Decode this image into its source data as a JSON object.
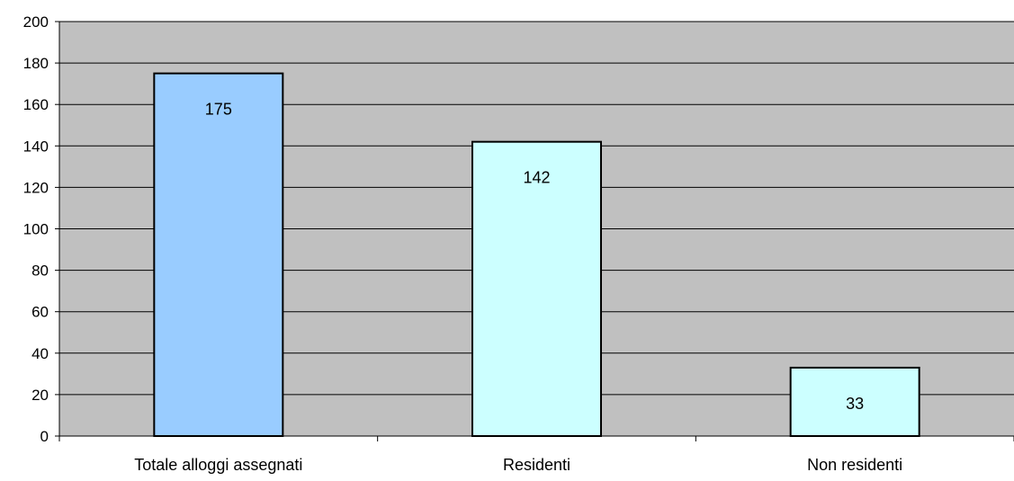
{
  "chart_data": {
    "type": "bar",
    "title": "",
    "xlabel": "",
    "ylabel": "",
    "categories": [
      "Totale alloggi assegnati",
      "Residenti",
      "Non residenti"
    ],
    "values": [
      175,
      142,
      33
    ],
    "data_labels": [
      "175",
      "142",
      "33"
    ],
    "ylim": [
      0,
      200
    ],
    "yticks": [
      0,
      20,
      40,
      60,
      80,
      100,
      120,
      140,
      160,
      180,
      200
    ],
    "ytick_labels": [
      "0",
      "20",
      "40",
      "60",
      "80",
      "100",
      "120",
      "140",
      "160",
      "180",
      "200"
    ],
    "grid": true,
    "legend": "none",
    "colors": {
      "plot_background": "#c0c0c0",
      "bars": [
        "#99ccff",
        "#ccffff",
        "#ccffff"
      ],
      "bar_border": "#000000",
      "gridline": "#000000",
      "axis": "#000000",
      "text": "#000000"
    }
  }
}
